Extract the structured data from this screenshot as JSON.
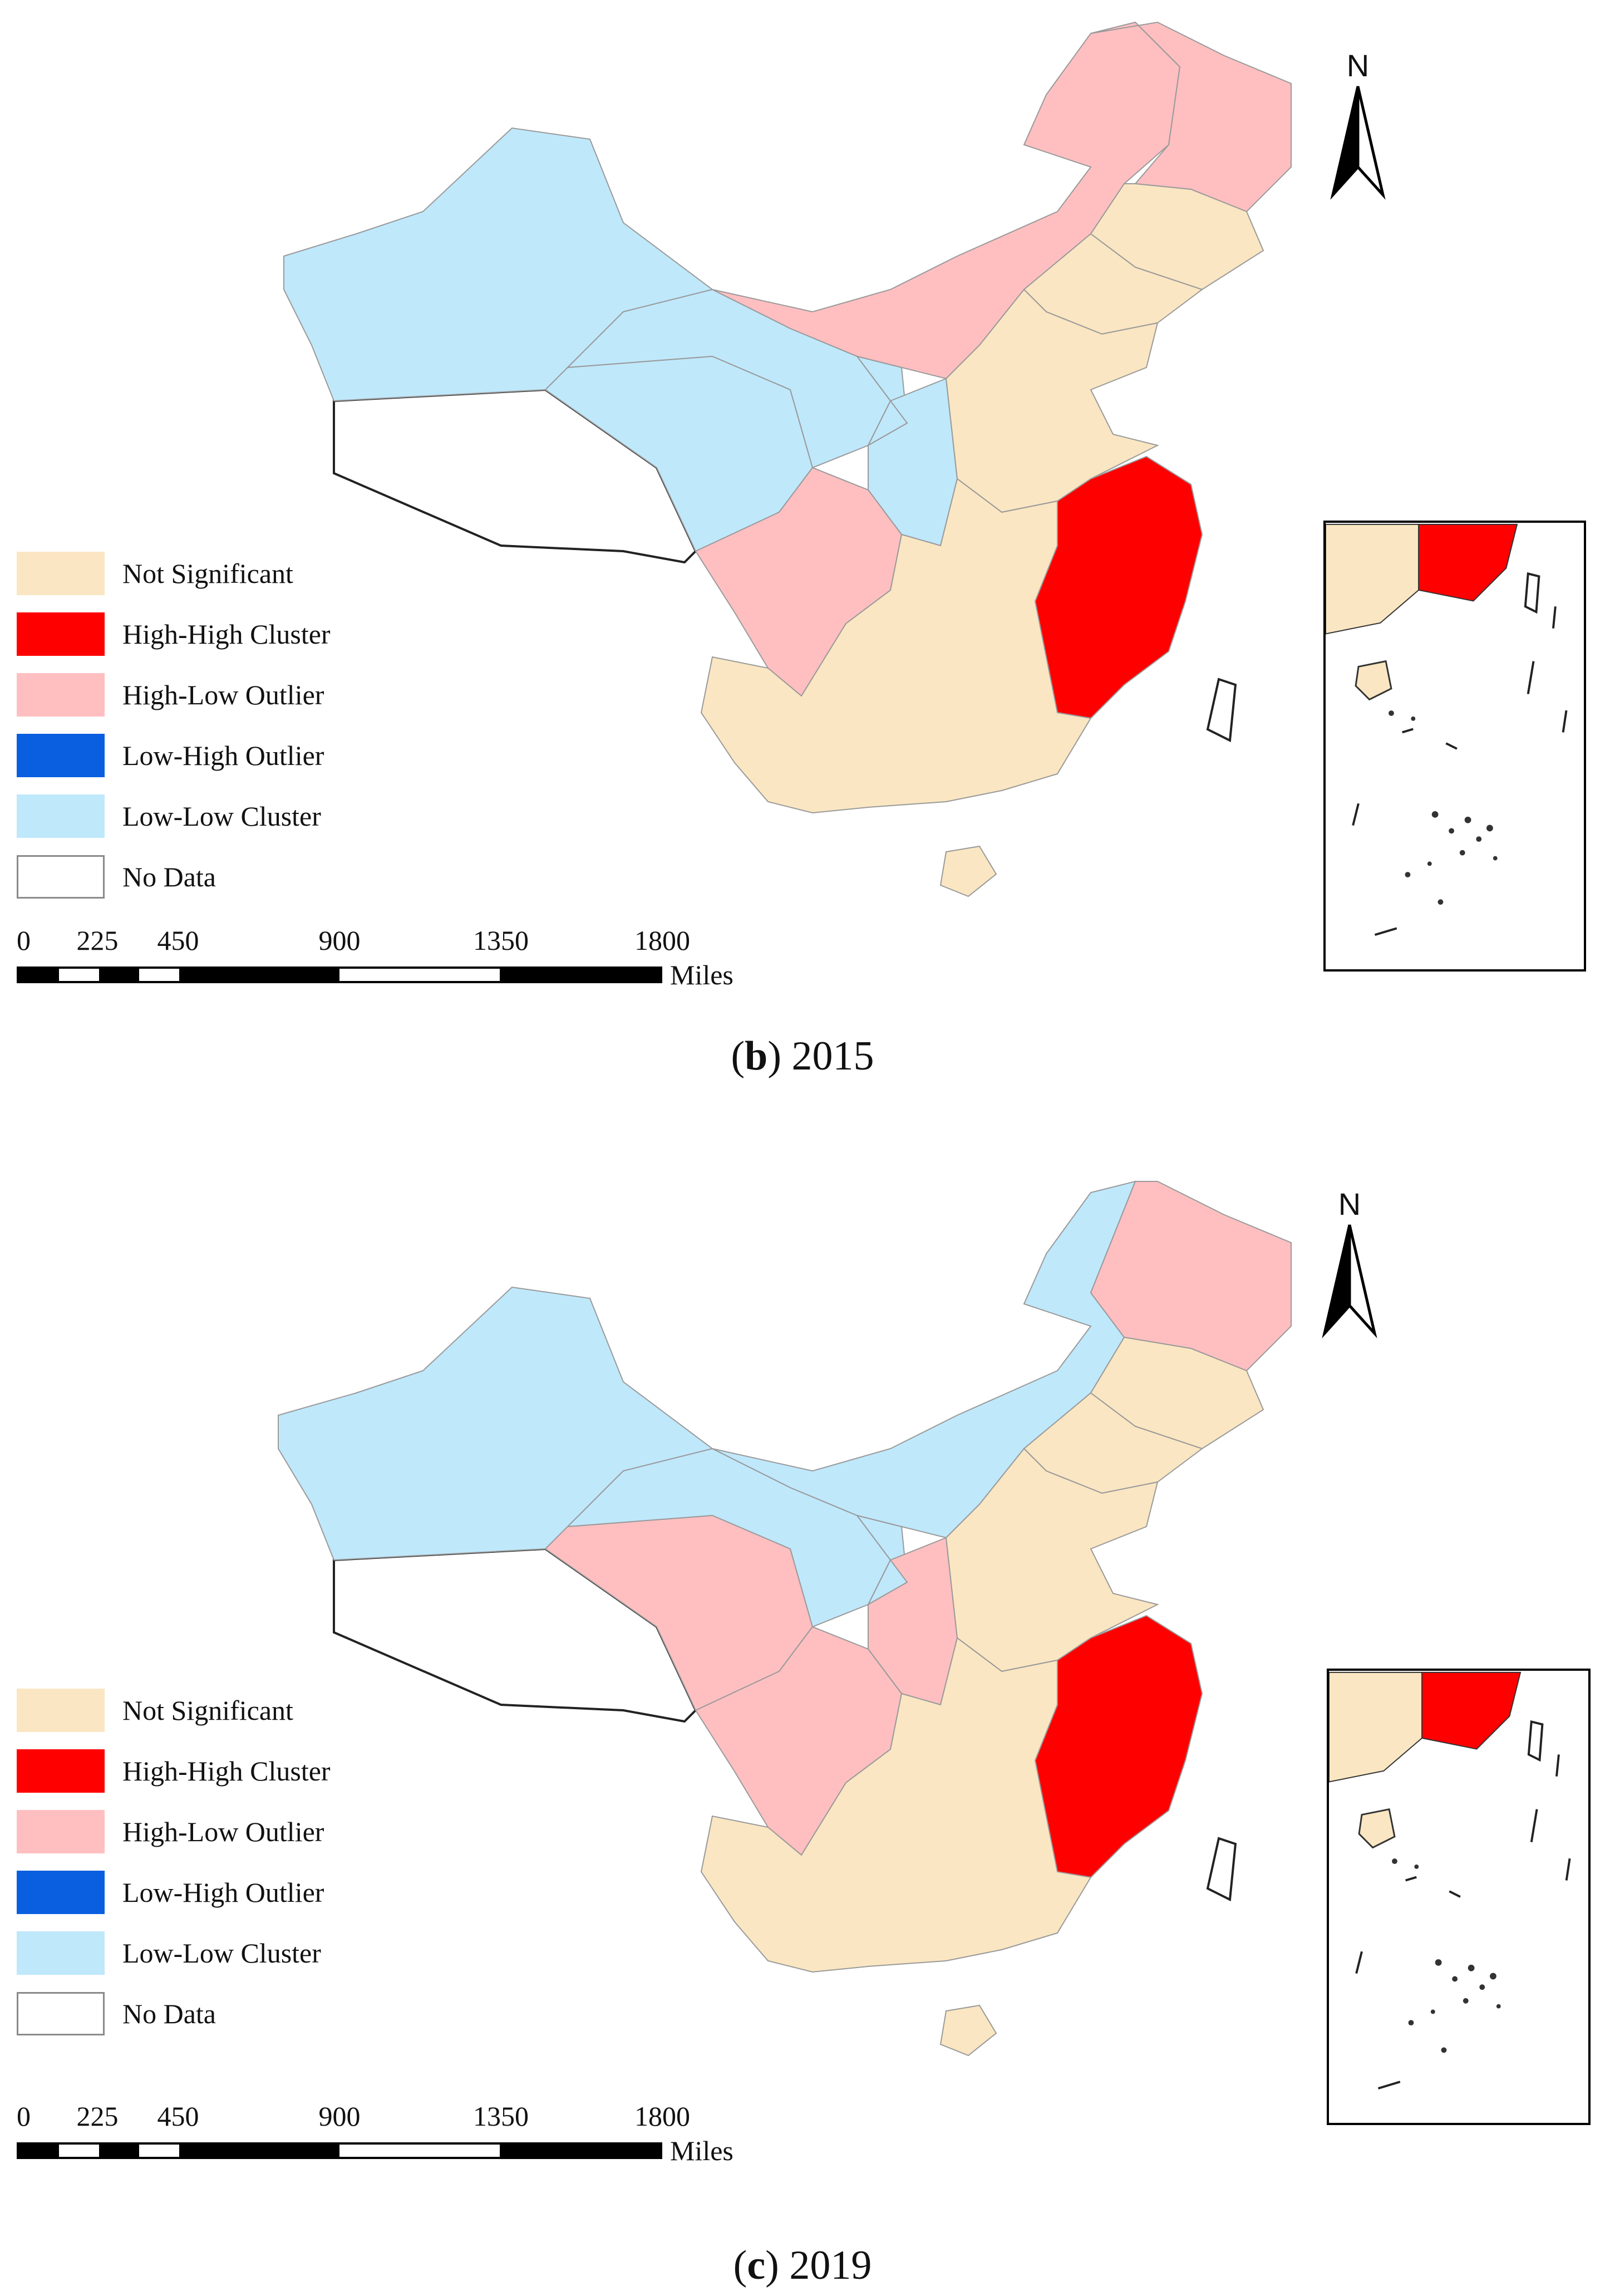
{
  "colors": {
    "not_significant": "#fae6c2",
    "high_high": "#ff0000",
    "high_low": "#ffbfc1",
    "low_high": "#0a5fe0",
    "low_low": "#bfe8fb",
    "no_data": "#ffffff",
    "border": "#222222"
  },
  "legend": [
    {
      "label": "Not Significant",
      "color_key": "not_significant"
    },
    {
      "label": "High-High Cluster",
      "color_key": "high_high"
    },
    {
      "label": "High-Low Outlier",
      "color_key": "high_low"
    },
    {
      "label": "Low-High Outlier",
      "color_key": "low_high"
    },
    {
      "label": "Low-Low Cluster",
      "color_key": "low_low"
    },
    {
      "label": "No Data",
      "color_key": "no_data"
    }
  ],
  "scale": {
    "ticks": [
      "0",
      "225",
      "450",
      "900",
      "1350",
      "1800"
    ],
    "tick_values": [
      0,
      225,
      450,
      900,
      1350,
      1800
    ],
    "unit": "Miles"
  },
  "north_label": "N",
  "panels": [
    {
      "id": "b",
      "caption_letter": "b",
      "caption_year": "2015",
      "region_classes": {
        "xinjiang": "low_low",
        "tibet": "no_data",
        "qinghai": "low_low",
        "gansu": "low_low",
        "ningxia": "low_low",
        "shaanxi": "low_low",
        "inner_mongolia": "high_low",
        "heilongjiang": "high_low",
        "jilin": "not_significant",
        "northeast_south": "not_significant",
        "sichuan": "high_low",
        "north_china": "not_significant",
        "central_south": "not_significant",
        "east_coast": "high_high",
        "hainan": "not_significant",
        "taiwan": "no_data"
      }
    },
    {
      "id": "c",
      "caption_letter": "c",
      "caption_year": "2019",
      "region_classes": {
        "xinjiang": "low_low",
        "tibet": "no_data",
        "qinghai": "high_low",
        "gansu": "low_low",
        "ningxia": "low_low",
        "shaanxi": "high_low",
        "inner_mongolia": "low_low",
        "heilongjiang": "high_low",
        "jilin": "not_significant",
        "northeast_south": "not_significant",
        "sichuan": "high_low",
        "north_china": "not_significant",
        "central_south": "not_significant",
        "east_coast": "high_high",
        "hainan": "not_significant",
        "taiwan": "no_data"
      }
    }
  ]
}
